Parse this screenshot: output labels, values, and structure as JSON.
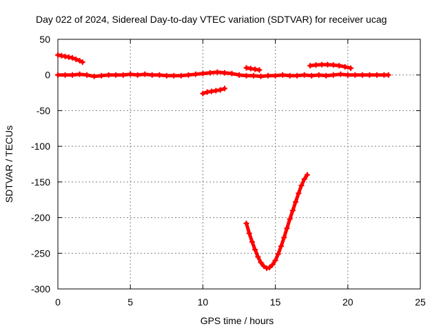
{
  "chart_data": {
    "type": "scatter",
    "title": "Day 022 of 2024, Sidereal Day-to-day VTEC variation (SDTVAR) for receiver ucag",
    "xlabel": "GPS time / hours",
    "ylabel": "SDTVAR / TECUs",
    "xlim": [
      0,
      25
    ],
    "ylim": [
      -300,
      50
    ],
    "xticks": [
      0,
      5,
      10,
      15,
      20,
      25
    ],
    "yticks": [
      50,
      0,
      -50,
      -100,
      -150,
      -200,
      -250,
      -300
    ],
    "grid": true,
    "legend": "none",
    "color": "#ff0000",
    "series": [
      {
        "x": [
          0,
          0.25,
          0.5,
          0.75,
          1.0,
          1.25,
          1.5,
          1.7
        ],
        "y": [
          28,
          27,
          26,
          25,
          24,
          22,
          20,
          18
        ]
      },
      {
        "x": [
          0,
          0.5,
          1,
          1.5,
          2,
          2.5,
          3,
          3.5,
          4,
          4.5,
          5,
          5.5,
          6,
          6.5,
          7,
          7.5,
          8,
          8.5,
          9,
          9.5,
          10,
          10.5,
          11,
          11.5,
          12,
          12.5,
          13,
          13.5,
          14,
          14.5,
          15,
          15.5,
          16,
          16.5,
          17,
          17.5,
          18,
          18.5,
          19,
          19.5,
          20,
          20.5,
          21,
          21.5,
          22,
          22.5,
          22.8
        ],
        "y": [
          0,
          0,
          0,
          1,
          0,
          -2,
          -1,
          0,
          0,
          0,
          1,
          0,
          1,
          0,
          0,
          -1,
          -1,
          -1,
          0,
          1,
          2,
          3,
          4,
          3,
          2,
          0,
          -1,
          -1,
          -2,
          -1,
          -1,
          0,
          -1,
          -1,
          0,
          -1,
          0,
          -1,
          0,
          1,
          0,
          0,
          0,
          0,
          0,
          0,
          0
        ]
      },
      {
        "x": [
          10.0,
          10.3,
          10.6,
          10.9,
          11.2,
          11.5
        ],
        "y": [
          -26,
          -24,
          -23,
          -22,
          -21,
          -19
        ]
      },
      {
        "x": [
          13.0,
          13.3,
          13.6,
          13.9
        ],
        "y": [
          10,
          9,
          8,
          7
        ]
      },
      {
        "x": [
          17.4,
          17.8,
          18.2,
          18.6,
          19.0,
          19.4,
          19.8,
          20.2
        ],
        "y": [
          13,
          14,
          14.5,
          14.5,
          14,
          13,
          11.5,
          9.5
        ]
      },
      {
        "x": [
          13.0,
          13.2,
          13.4,
          13.6,
          13.8,
          14.0,
          14.2,
          14.4,
          14.6,
          14.8,
          15.0,
          15.2,
          15.4,
          15.6,
          15.8,
          16.0,
          16.2,
          16.4,
          16.6,
          16.8,
          17.0,
          17.2
        ],
        "y": [
          -208,
          -222,
          -234,
          -245,
          -255,
          -263,
          -268,
          -271,
          -270,
          -266,
          -260,
          -251,
          -240,
          -228,
          -215,
          -202,
          -190,
          -178,
          -166,
          -155,
          -146,
          -140
        ]
      }
    ]
  }
}
